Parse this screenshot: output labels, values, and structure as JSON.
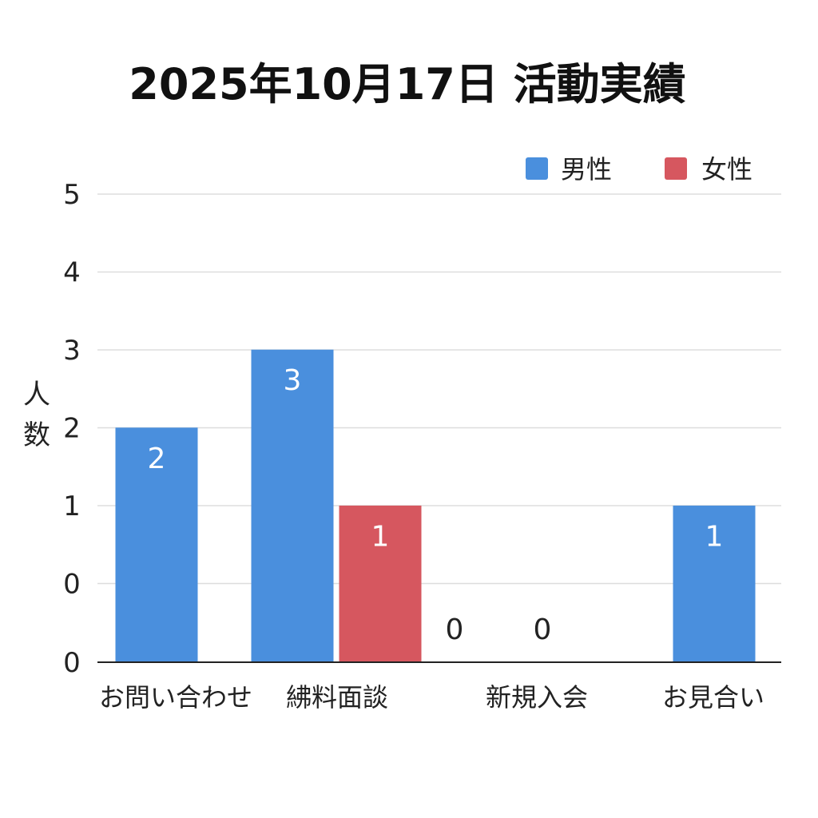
{
  "chart_data": {
    "type": "bar",
    "title": "2025年10月17日 活動実績",
    "ylabel": "人数",
    "xlabel": "",
    "ylim": [
      0,
      5
    ],
    "y_ticks": [
      "5",
      "4",
      "3",
      "2",
      "1",
      "0",
      "0"
    ],
    "categories": [
      "お問い合わせ",
      "紼料面談",
      "新規入会",
      "お見合い"
    ],
    "series": [
      {
        "name": "男性",
        "color": "#4a8fdd",
        "values": [
          2,
          3,
          0,
          1
        ]
      },
      {
        "name": "女性",
        "color": "#d6575f",
        "values": [
          null,
          1,
          0,
          null
        ]
      }
    ],
    "data_labels": {
      "男性": [
        "2",
        "3",
        "0",
        "1"
      ],
      "女性": [
        "",
        "1",
        "0",
        ""
      ]
    },
    "legend_position": "top-right",
    "grid": true
  }
}
